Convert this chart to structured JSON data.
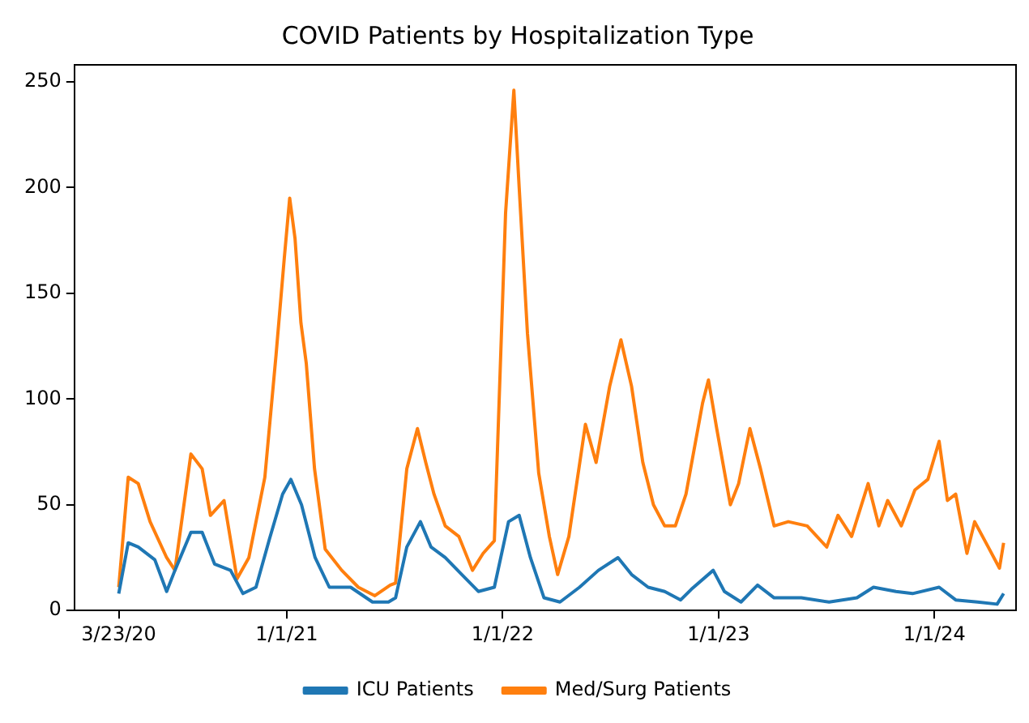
{
  "chart_data": {
    "type": "line",
    "title": "COVID Patients by Hospitalization Type",
    "xlim": [
      "2020-01-08",
      "2024-05-18"
    ],
    "xticks": [
      {
        "value": "2020-03-23",
        "label": "3/23/20"
      },
      {
        "value": "2021-01-01",
        "label": "1/1/21"
      },
      {
        "value": "2022-01-01",
        "label": "1/1/22"
      },
      {
        "value": "2023-01-01",
        "label": "1/1/23"
      },
      {
        "value": "2024-01-01",
        "label": "1/1/24"
      }
    ],
    "ylim": [
      0,
      258
    ],
    "yticks": [
      0,
      50,
      100,
      150,
      200,
      250
    ],
    "grid": false,
    "legend": "bottom",
    "marker": "none",
    "line_style": "solid",
    "series": [
      {
        "name": "ICU Patients",
        "color": "#1f77b4",
        "x": [
          "2020-03-23",
          "2020-04-08",
          "2020-04-25",
          "2020-05-23",
          "2020-06-12",
          "2020-06-26",
          "2020-07-23",
          "2020-08-11",
          "2020-09-01",
          "2020-09-28",
          "2020-10-19",
          "2020-11-10",
          "2020-12-03",
          "2020-12-25",
          "2021-01-08",
          "2021-01-26",
          "2021-02-18",
          "2021-03-14",
          "2021-04-19",
          "2021-05-26",
          "2021-06-22",
          "2021-07-04",
          "2021-07-23",
          "2021-08-15",
          "2021-09-02",
          "2021-09-26",
          "2021-10-24",
          "2021-11-21",
          "2021-12-18",
          "2022-01-11",
          "2022-01-29",
          "2022-02-17",
          "2022-03-12",
          "2022-04-08",
          "2022-05-11",
          "2022-06-12",
          "2022-07-15",
          "2022-08-07",
          "2022-09-04",
          "2022-10-02",
          "2022-10-29",
          "2022-11-16",
          "2022-12-23",
          "2023-01-11",
          "2023-02-08",
          "2023-03-08",
          "2023-04-05",
          "2023-05-21",
          "2023-07-07",
          "2023-08-23",
          "2023-09-20",
          "2023-10-28",
          "2023-11-25",
          "2024-01-09",
          "2024-02-06",
          "2024-03-14",
          "2024-04-16",
          "2024-04-27"
        ],
        "values": [
          8,
          32,
          30,
          24,
          9,
          19,
          37,
          37,
          22,
          19,
          8,
          11,
          34,
          55,
          62,
          50,
          25,
          11,
          11,
          4,
          4,
          6,
          30,
          42,
          30,
          25,
          17,
          9,
          11,
          42,
          45,
          25,
          6,
          4,
          11,
          19,
          25,
          17,
          11,
          9,
          5,
          10,
          19,
          9,
          4,
          12,
          6,
          6,
          4,
          6,
          11,
          9,
          8,
          11,
          5,
          4,
          3,
          8
        ]
      },
      {
        "name": "Med/Surg Patients",
        "color": "#ff7f0e",
        "x": [
          "2020-03-23",
          "2020-04-08",
          "2020-04-25",
          "2020-05-15",
          "2020-06-12",
          "2020-06-26",
          "2020-07-23",
          "2020-08-11",
          "2020-08-25",
          "2020-09-17",
          "2020-10-09",
          "2020-10-29",
          "2020-11-25",
          "2020-12-14",
          "2020-12-28",
          "2021-01-06",
          "2021-01-15",
          "2021-01-25",
          "2021-02-03",
          "2021-02-17",
          "2021-03-07",
          "2021-04-04",
          "2021-05-02",
          "2021-05-30",
          "2021-06-25",
          "2021-07-04",
          "2021-07-23",
          "2021-08-10",
          "2021-08-24",
          "2021-09-07",
          "2021-09-26",
          "2021-10-19",
          "2021-11-11",
          "2021-11-29",
          "2021-12-18",
          "2022-01-06",
          "2022-01-20",
          "2022-01-29",
          "2022-02-12",
          "2022-03-03",
          "2022-03-21",
          "2022-04-04",
          "2022-04-23",
          "2022-05-21",
          "2022-06-08",
          "2022-07-01",
          "2022-07-20",
          "2022-08-07",
          "2022-08-26",
          "2022-09-13",
          "2022-10-02",
          "2022-10-20",
          "2022-11-07",
          "2022-12-05",
          "2022-12-15",
          "2022-12-29",
          "2023-01-21",
          "2023-02-04",
          "2023-02-23",
          "2023-03-13",
          "2023-04-05",
          "2023-04-29",
          "2023-05-31",
          "2023-07-03",
          "2023-07-22",
          "2023-08-14",
          "2023-09-11",
          "2023-09-29",
          "2023-10-14",
          "2023-11-06",
          "2023-11-29",
          "2023-12-21",
          "2024-01-09",
          "2024-01-23",
          "2024-02-06",
          "2024-02-25",
          "2024-03-09",
          "2024-04-01",
          "2024-04-20",
          "2024-04-27"
        ],
        "values": [
          11,
          63,
          60,
          42,
          25,
          19,
          74,
          67,
          45,
          52,
          15,
          25,
          63,
          121,
          167,
          195,
          176,
          136,
          117,
          67,
          29,
          19,
          11,
          7,
          12,
          13,
          67,
          86,
          70,
          55,
          40,
          35,
          19,
          27,
          33,
          188,
          246,
          200,
          131,
          65,
          35,
          17,
          35,
          88,
          70,
          106,
          128,
          106,
          70,
          50,
          40,
          40,
          55,
          98,
          109,
          86,
          50,
          60,
          86,
          67,
          40,
          42,
          40,
          30,
          45,
          35,
          60,
          40,
          52,
          40,
          57,
          62,
          80,
          52,
          55,
          27,
          42,
          30,
          20,
          32
        ]
      }
    ]
  }
}
